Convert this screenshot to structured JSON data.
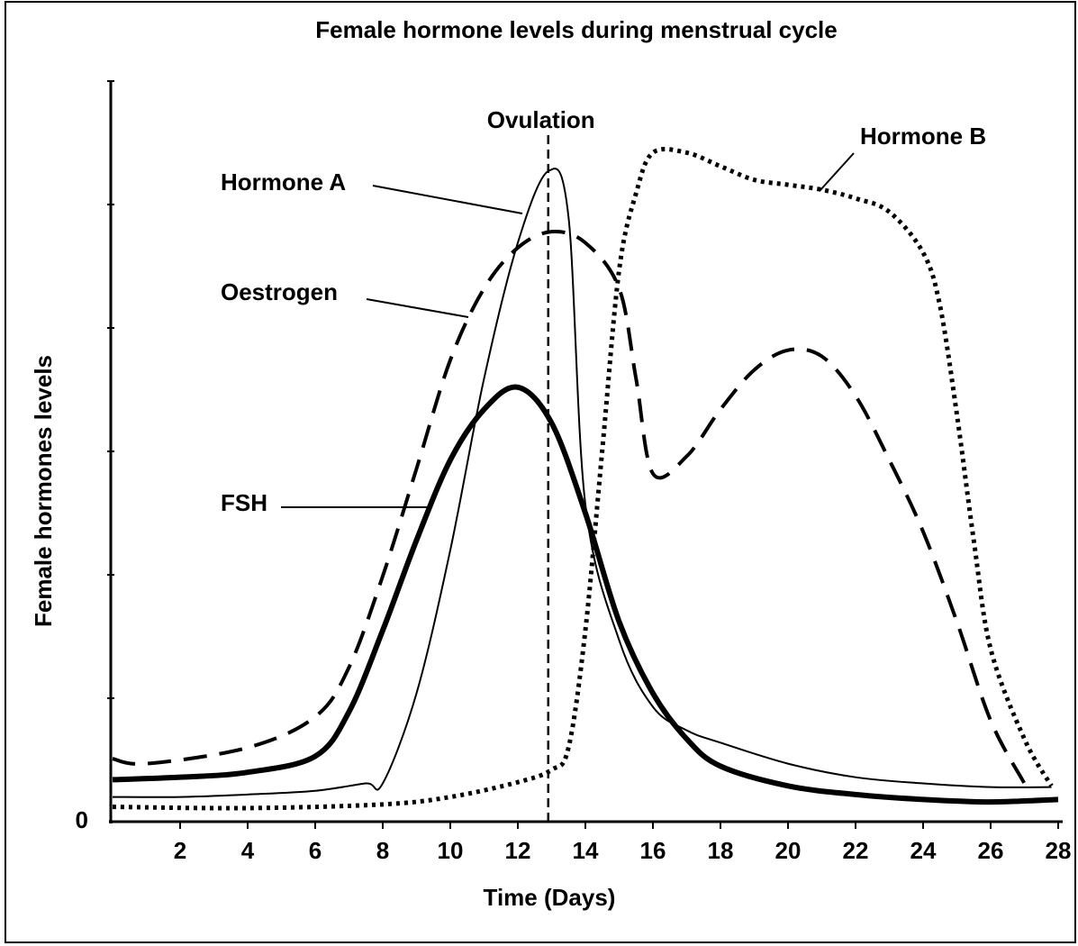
{
  "chart_data": {
    "type": "line",
    "title": "Female hormone levels during menstrual cycle",
    "x_label": "Time (Days)",
    "y_label": "Female hormones levels",
    "xlim": [
      0,
      28
    ],
    "xticks": [
      2,
      4,
      6,
      8,
      10,
      12,
      14,
      16,
      18,
      20,
      22,
      24,
      26,
      28
    ],
    "ylim": [
      0,
      6
    ],
    "yticks": [
      0
    ],
    "minor_yticks": [
      1,
      2,
      3,
      4,
      5,
      6
    ],
    "annotation": {
      "text": "Ovulation",
      "x": 12.9
    },
    "series": [
      {
        "name": "Hormone A",
        "color": "#000000",
        "style": "thin",
        "x": [
          0,
          2,
          4,
          6,
          7.5,
          8,
          9,
          10,
          11,
          12,
          12.9,
          13.5,
          14,
          15,
          16,
          17,
          18,
          20,
          22,
          24,
          26,
          27.8
        ],
        "values": [
          0.2,
          0.2,
          0.22,
          0.25,
          0.31,
          0.31,
          1.04,
          2.2,
          3.59,
          4.69,
          5.27,
          4.9,
          2.57,
          1.47,
          0.93,
          0.74,
          0.64,
          0.47,
          0.36,
          0.31,
          0.28,
          0.28
        ]
      },
      {
        "name": "Oestrogen",
        "color": "#000000",
        "style": "dashed",
        "x": [
          0,
          1,
          4,
          6,
          7,
          8,
          9,
          10,
          11,
          12,
          13,
          14,
          15,
          15.5,
          16,
          17,
          18,
          19,
          20,
          21,
          22,
          23,
          24,
          25,
          26,
          27
        ],
        "values": [
          0.51,
          0.47,
          0.6,
          0.85,
          1.25,
          1.99,
          2.86,
          3.74,
          4.32,
          4.65,
          4.78,
          4.69,
          4.32,
          3.59,
          2.82,
          2.96,
          3.34,
          3.66,
          3.82,
          3.77,
          3.45,
          2.93,
          2.35,
          1.62,
          0.82,
          0.31
        ]
      },
      {
        "name": "FSH",
        "color": "#000000",
        "style": "thick",
        "x": [
          0,
          2,
          4,
          6,
          7,
          8,
          9,
          10,
          11,
          12,
          13,
          14,
          15,
          16,
          17,
          18,
          20,
          22,
          24,
          26,
          28
        ],
        "values": [
          0.34,
          0.36,
          0.4,
          0.53,
          0.89,
          1.55,
          2.28,
          2.93,
          3.34,
          3.52,
          3.23,
          2.5,
          1.62,
          1.04,
          0.67,
          0.45,
          0.29,
          0.22,
          0.18,
          0.16,
          0.18
        ]
      },
      {
        "name": "Hormone B",
        "color": "#000000",
        "style": "dotted",
        "x": [
          0,
          4,
          8,
          10,
          12,
          13,
          13.5,
          14,
          14.5,
          15,
          15.5,
          16,
          17,
          18,
          19,
          20,
          21,
          22,
          23,
          24,
          24.5,
          25,
          25.5,
          26,
          27,
          27.8
        ],
        "values": [
          0.12,
          0.11,
          0.14,
          0.2,
          0.32,
          0.42,
          0.6,
          1.55,
          3.01,
          4.47,
          5.09,
          5.42,
          5.42,
          5.31,
          5.2,
          5.16,
          5.12,
          5.05,
          4.94,
          4.61,
          4.18,
          3.3,
          2.28,
          1.4,
          0.67,
          0.29
        ]
      }
    ]
  }
}
